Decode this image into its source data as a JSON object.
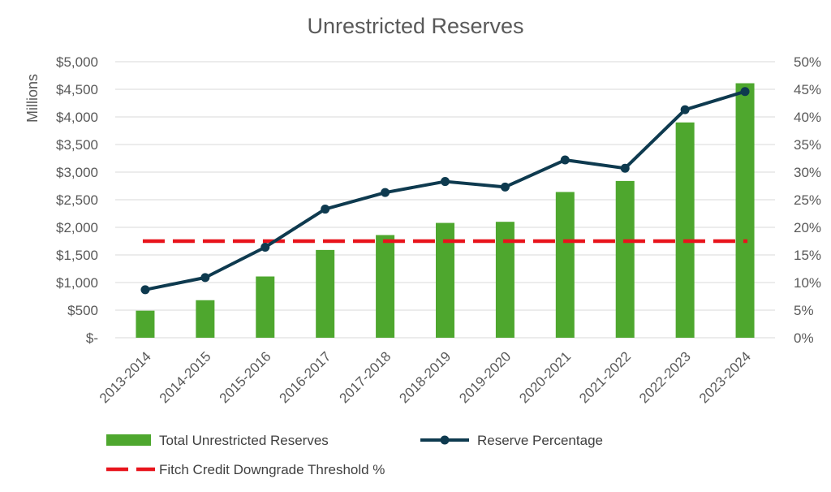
{
  "chart_data": {
    "type": "bar",
    "title": "Unrestricted Reserves",
    "ylabel": "Millions",
    "categories": [
      "2013-2014",
      "2014-2015",
      "2015-2016",
      "2016-2017",
      "2017-2018",
      "2018-2019",
      "2019-2020",
      "2020-2021",
      "2021-2022",
      "2022-2023",
      "2023-2024"
    ],
    "ylim": [
      0,
      5000
    ],
    "y2lim": [
      0,
      0.5
    ],
    "y_ticks": [
      "$-",
      "$500",
      "$1,000",
      "$1,500",
      "$2,000",
      "$2,500",
      "$3,000",
      "$3,500",
      "$4,000",
      "$4,500",
      "$5,000"
    ],
    "y2_ticks": [
      "0%",
      "5%",
      "10%",
      "15%",
      "20%",
      "25%",
      "30%",
      "35%",
      "40%",
      "45%",
      "50%"
    ],
    "grid": true,
    "legend_position": "bottom",
    "series": [
      {
        "name": "Total Unrestricted Reserves",
        "type": "bar",
        "axis": "left",
        "color": "#4ea72e",
        "values": [
          490,
          680,
          1110,
          1590,
          1860,
          2080,
          2100,
          2640,
          2840,
          3900,
          4610
        ]
      },
      {
        "name": "Reserve Percentage",
        "type": "line",
        "axis": "right",
        "color": "#0e3a4f",
        "marker": "circle",
        "values": [
          0.087,
          0.109,
          0.164,
          0.233,
          0.263,
          0.283,
          0.273,
          0.322,
          0.307,
          0.413,
          0.446
        ]
      },
      {
        "name": "Fitch Credit Downgrade Threshold %",
        "type": "line",
        "axis": "right",
        "color": "#e8141c",
        "dash": "dashed",
        "values": [
          0.175,
          0.175,
          0.175,
          0.175,
          0.175,
          0.175,
          0.175,
          0.175,
          0.175,
          0.175,
          0.175
        ]
      }
    ]
  }
}
